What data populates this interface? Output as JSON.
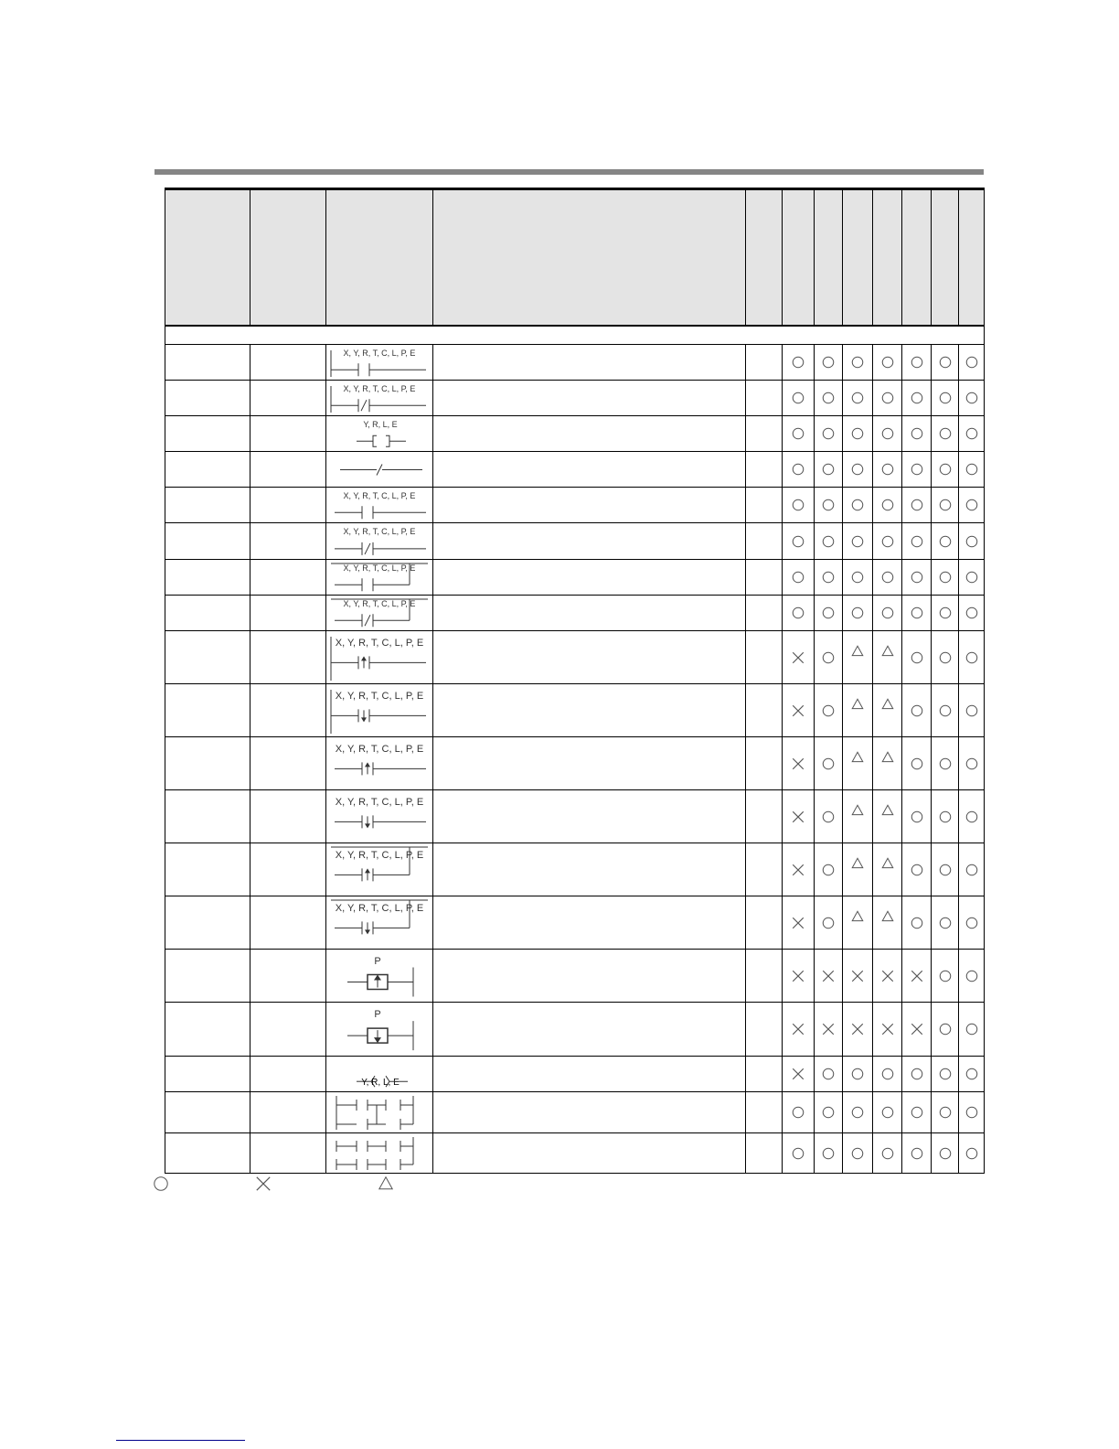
{
  "colors": {
    "rule": "#858585",
    "header_bg": "#e4e4e4",
    "link": "#00008b"
  },
  "legend": [
    "circle",
    "cross",
    "triangle"
  ],
  "rows": [
    {
      "label": "X, Y, R, T, C, L, P, E",
      "kind": "no-rail",
      "h": 39,
      "marks": "OOOOOOO"
    },
    {
      "label": "X, Y, R, T, C, L, P, E",
      "kind": "nc-rail",
      "h": 39,
      "marks": "OOOOOOO"
    },
    {
      "label": "Y, R, L, E",
      "kind": "coil",
      "h": 39,
      "marks": "OOOOOOO"
    },
    {
      "label": "",
      "kind": "inv",
      "h": 39,
      "marks": "OOOOOOO"
    },
    {
      "label": "X, Y, R, T, C, L, P, E",
      "kind": "no-ser",
      "h": 39,
      "marks": "OOOOOOO"
    },
    {
      "label": "X, Y, R, T, C, L, P, E",
      "kind": "nc-ser",
      "h": 40,
      "marks": "OOOOOOO"
    },
    {
      "label": "X, Y, R, T, C, L, P, E",
      "kind": "no-par",
      "h": 39,
      "marks": "OOOOOOO"
    },
    {
      "label": "X, Y, R, T, C, L, P, E",
      "kind": "nc-par",
      "h": 39,
      "marks": "OOOOOOO"
    },
    {
      "label": "X, Y, R, T, C, L, P, E",
      "kind": "up-rail",
      "h": 58,
      "marks": "XOTTOOO"
    },
    {
      "label": "X, Y, R, T, C, L, P, E",
      "kind": "dn-rail",
      "h": 58,
      "marks": "XOTTOOO"
    },
    {
      "label": "X, Y, R, T, C, L, P, E",
      "kind": "up-ser",
      "h": 58,
      "marks": "XOTTOOO"
    },
    {
      "label": "X, Y, R, T, C, L, P, E",
      "kind": "dn-ser",
      "h": 58,
      "marks": "XOTTOOO"
    },
    {
      "label": "X, Y, R, T, C, L, P, E",
      "kind": "up-par",
      "h": 58,
      "marks": "XOTTOOO"
    },
    {
      "label": "X, Y, R, T, C, L, P, E",
      "kind": "dn-par",
      "h": 58,
      "marks": "XOTTOOO"
    },
    {
      "label": "P",
      "kind": "p-up",
      "h": 58,
      "marks": "XXXXXOO"
    },
    {
      "label": "P",
      "kind": "p-dn",
      "h": 59,
      "marks": "XXXXXOO"
    },
    {
      "label": "Y, R, L, E",
      "kind": "alt",
      "h": 39,
      "marks": "XOOOOOO"
    },
    {
      "label": "",
      "kind": "anb",
      "h": 45,
      "marks": "OOOOOOO"
    },
    {
      "label": "",
      "kind": "orb",
      "h": 44,
      "marks": "OOOOOOO"
    }
  ]
}
